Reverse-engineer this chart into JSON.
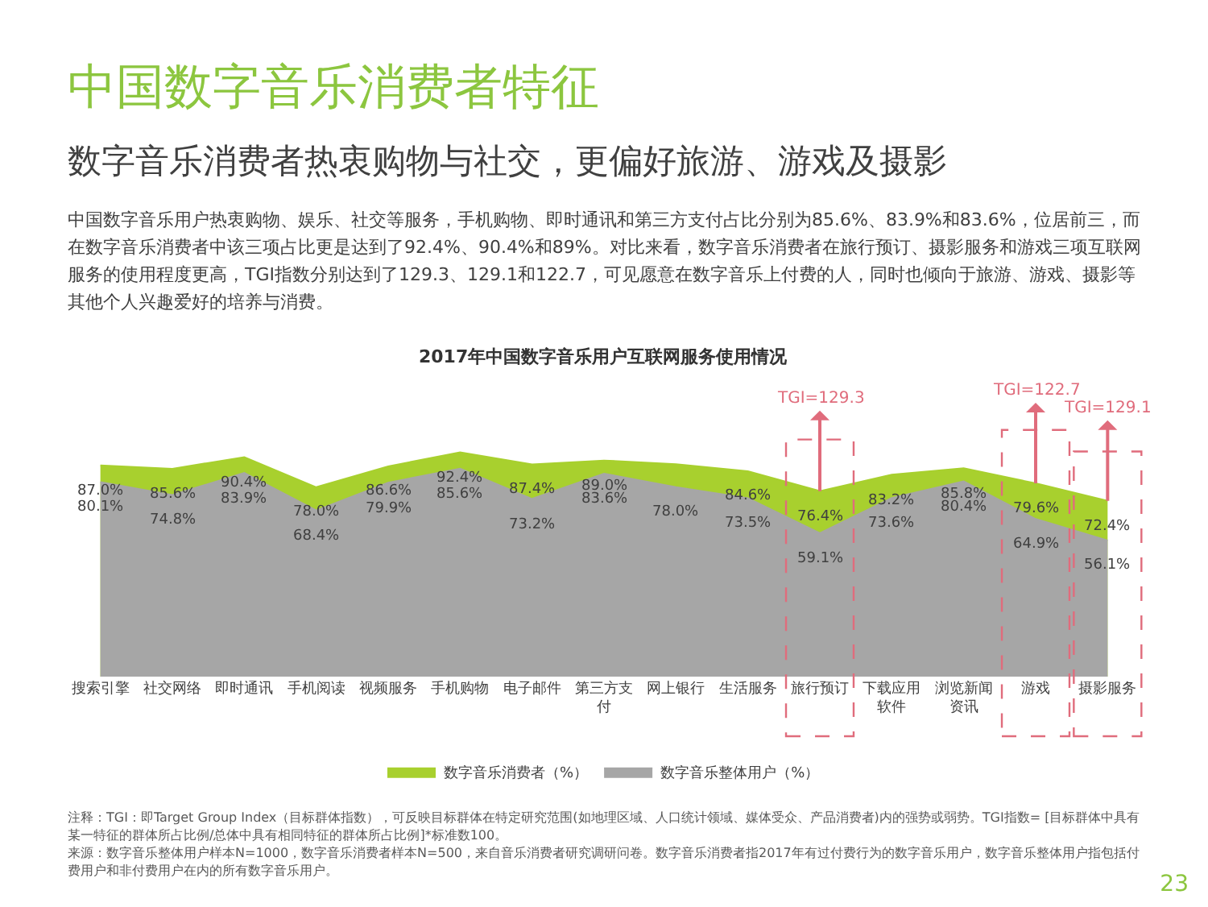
{
  "chart_data": {
    "type": "area",
    "title": "中国数字音乐消费者特征",
    "subtitle": "数字音乐消费者热衷购物与社交，更偏好旅游、游戏及摄影",
    "categories": [
      "搜索引擎",
      "社交网络",
      "即时通讯",
      "手机阅读",
      "视频服务",
      "手机购物",
      "电子邮件",
      "第三方支付",
      "网上银行",
      "生活服务",
      "旅行预订",
      "下载应用软件",
      "浏览新闻资讯",
      "游戏",
      "摄影服务"
    ],
    "ylabel": "2017年中国数字音乐用户互联网服务使用情况",
    "series": [
      {
        "name": "数字音乐消费者（%）",
        "color": "#a8d02e",
        "values": [
          87.0,
          85.6,
          90.4,
          78.0,
          86.6,
          92.4,
          87.4,
          89.0,
          87.5,
          84.6,
          76.4,
          83.2,
          85.8,
          79.6,
          72.4
        ],
        "value_labels": [
          "87.0%",
          "85.6%",
          "90.4%",
          "78.0%",
          "86.6%",
          "92.4%",
          "87.4%",
          "89.0%",
          null,
          "84.6%",
          "76.4%",
          "83.2%",
          "85.8%",
          "79.6%",
          "72.4%"
        ]
      },
      {
        "name": "数字音乐整体用户（%）",
        "color": "#a6a6a6",
        "values": [
          80.1,
          74.8,
          83.9,
          68.4,
          79.9,
          85.6,
          73.2,
          83.6,
          78.0,
          73.5,
          59.1,
          73.6,
          80.4,
          64.9,
          56.1
        ],
        "value_labels": [
          "80.1%",
          "74.8%",
          "83.9%",
          "68.4%",
          "79.9%",
          "85.6%",
          "73.2%",
          "83.6%",
          "78.0%",
          "73.5%",
          "59.1%",
          "73.6%",
          "80.4%",
          "64.9%",
          "56.1%"
        ]
      }
    ],
    "tick_labels": "x",
    "grid": false,
    "legend": "bottom",
    "marker": "none",
    "annotations": [
      "中国数字音乐用户热衷购物、娱乐、社交等服务，手机购物、即时通讯和第三方支付占比分别为85.6%、83.9%和83.6%，位居前三，而在数字音乐消费者中该三项占比更是达到了92.4%、90.4%和89%。对比来看，数字音乐消费者在旅行预订、摄影服务和游戏三项互联网服务的使用程度更高，TGI指数分别达到了129.3、129.1和122.7，可见愿意在数字音乐上付费的人，同时也倾向于旅游、游戏、摄影等其他个人兴趣爱好的培养与消费。",
      "注释：TGI：即Target Group Index（目标群体指数），可反映目标群体在特定研究范围(如地理区域、人口统计领域、媒体受众、产品消费者)内的强势或弱势。TGI指数= [目标群体中具有某一特征的群体所占比例/总体中具有相同特征的群体所占比例]*标准数100。",
      "来源：数字音乐整体用户样本N=1000，数字音乐消费者样本N=500，来自音乐消费者研究调研问卷。数字音乐消费者指2017年有过付费行为的数字音乐用户，数字音乐整体用户指包括付费用户和非付费用户在内的所有数字音乐用户。",
      "23",
      {
        "text": "TGI=129.3",
        "x": "旅行预订",
        "y": 76.4
      },
      {
        "text": "TGI=122.7",
        "x": "游戏",
        "y": 79.6
      },
      {
        "text": "TGI=129.1",
        "x": "摄影服务",
        "y": 72.4
      }
    ]
  }
}
